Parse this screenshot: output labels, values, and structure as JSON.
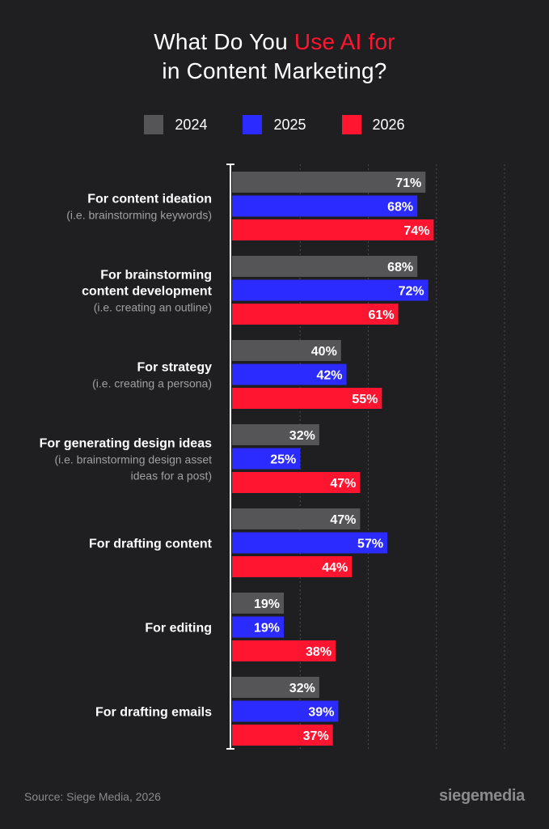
{
  "title": {
    "line1_prefix": "What Do You ",
    "line1_accent": "Use AI for",
    "line2": "in Content Marketing?"
  },
  "legend": [
    {
      "label": "2024",
      "color": "#555558"
    },
    {
      "label": "2025",
      "color": "#2b2bff"
    },
    {
      "label": "2026",
      "color": "#ff1530"
    }
  ],
  "chart_data": {
    "type": "bar",
    "orientation": "horizontal",
    "title": "What Do You Use AI for in Content Marketing?",
    "categories": [
      {
        "main": [
          "For content ideation"
        ],
        "sub": [
          "(i.e. brainstorming keywords)"
        ]
      },
      {
        "main": [
          "For brainstorming",
          "content development"
        ],
        "sub": [
          "(i.e. creating an outline)"
        ]
      },
      {
        "main": [
          "For strategy"
        ],
        "sub": [
          "(i.e. creating a persona)"
        ]
      },
      {
        "main": [
          "For generating design ideas"
        ],
        "sub": [
          "(i.e. brainstorming design asset",
          "ideas for a post)"
        ]
      },
      {
        "main": [
          "For drafting content"
        ],
        "sub": []
      },
      {
        "main": [
          "For editing"
        ],
        "sub": []
      },
      {
        "main": [
          "For drafting emails"
        ],
        "sub": []
      }
    ],
    "series": [
      {
        "name": "2024",
        "color": "#555558",
        "values": [
          71,
          68,
          40,
          32,
          47,
          19,
          32
        ]
      },
      {
        "name": "2025",
        "color": "#2b2bff",
        "values": [
          68,
          72,
          42,
          25,
          57,
          19,
          39
        ]
      },
      {
        "name": "2026",
        "color": "#ff1530",
        "values": [
          74,
          61,
          55,
          47,
          44,
          38,
          37
        ]
      }
    ],
    "value_suffix": "%",
    "xlim": [
      0,
      100
    ],
    "grid": "dotted vertical",
    "legend_position": "top-center"
  },
  "footer": {
    "source": "Source: Siege Media, 2026",
    "logo": "siegemedia"
  }
}
